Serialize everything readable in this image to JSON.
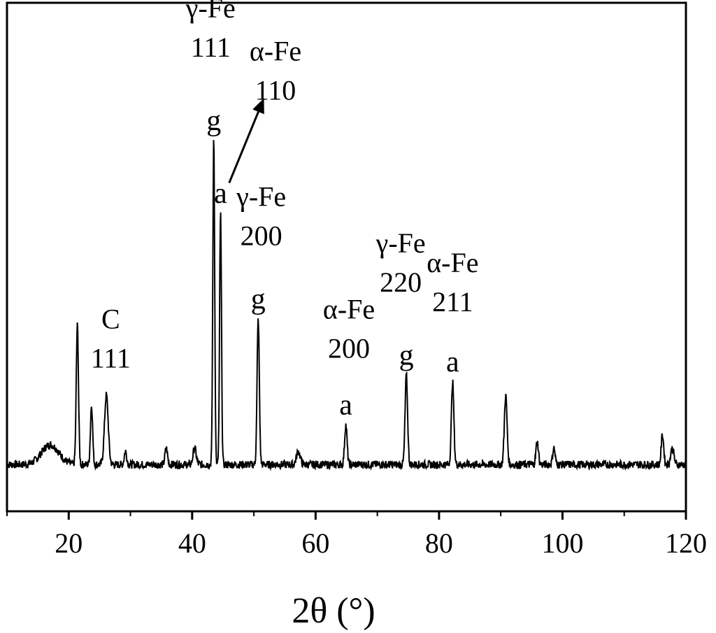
{
  "chart_data": {
    "type": "line",
    "title": "",
    "xlabel": "2θ (°)",
    "ylabel": "",
    "xlim": [
      10,
      120
    ],
    "ylim": [
      0,
      100
    ],
    "grid": false,
    "x_ticks": [
      20,
      40,
      60,
      80,
      100,
      120
    ],
    "x_tick_labels": [
      "20",
      "40",
      "60",
      "80",
      "100",
      "120"
    ],
    "series": [
      {
        "name": "",
        "color": "#000000",
        "baseline": 1.5,
        "noise_amplitude": 1.2,
        "peaks": [
          {
            "x": 17.0,
            "y": 6,
            "w": 1.4
          },
          {
            "x": 21.4,
            "y": 42,
            "w": 0.18
          },
          {
            "x": 23.7,
            "y": 18,
            "w": 0.18
          },
          {
            "x": 26.1,
            "y": 21,
            "w": 0.3
          },
          {
            "x": 29.2,
            "y": 4,
            "w": 0.2
          },
          {
            "x": 35.8,
            "y": 5,
            "w": 0.2
          },
          {
            "x": 40.4,
            "y": 5,
            "w": 0.25
          },
          {
            "x": 43.5,
            "y": 98,
            "w": 0.15
          },
          {
            "x": 44.6,
            "y": 76,
            "w": 0.15
          },
          {
            "x": 50.7,
            "y": 44,
            "w": 0.18
          },
          {
            "x": 57.2,
            "y": 4,
            "w": 0.3
          },
          {
            "x": 64.9,
            "y": 12,
            "w": 0.2
          },
          {
            "x": 74.7,
            "y": 27,
            "w": 0.2
          },
          {
            "x": 82.2,
            "y": 25,
            "w": 0.2
          },
          {
            "x": 90.8,
            "y": 21,
            "w": 0.22
          },
          {
            "x": 95.9,
            "y": 7,
            "w": 0.2
          },
          {
            "x": 98.6,
            "y": 5,
            "w": 0.2
          },
          {
            "x": 116.2,
            "y": 9,
            "w": 0.2
          },
          {
            "x": 117.8,
            "y": 5,
            "w": 0.25
          }
        ]
      }
    ],
    "peak_markers": [
      {
        "x": 43.5,
        "label": "g",
        "y": 103
      },
      {
        "x": 44.6,
        "label": "a",
        "y": 81
      },
      {
        "x": 50.7,
        "label": "g",
        "y": 49
      },
      {
        "x": 64.9,
        "label": "a",
        "y": 17
      },
      {
        "x": 74.7,
        "label": "g",
        "y": 32
      },
      {
        "x": 82.2,
        "label": "a",
        "y": 30
      }
    ],
    "annotations": [
      {
        "lines": [
          "C",
          "111"
        ],
        "x": 26.8,
        "y": 43
      },
      {
        "lines": [
          "γ-Fe",
          "111"
        ],
        "x": 43.0,
        "y": 137
      },
      {
        "lines": [
          "α-Fe",
          "110"
        ],
        "x": 53.5,
        "y": 124
      },
      {
        "lines": [
          "γ-Fe",
          "200"
        ],
        "x": 51.2,
        "y": 80
      },
      {
        "lines": [
          "α-Fe",
          "200"
        ],
        "x": 65.4,
        "y": 46
      },
      {
        "lines": [
          "γ-Fe",
          "220"
        ],
        "x": 73.8,
        "y": 66
      },
      {
        "lines": [
          "α-Fe",
          "211"
        ],
        "x": 82.2,
        "y": 60
      }
    ],
    "arrow": {
      "from": [
        46.0,
        87
      ],
      "to": [
        51.5,
        112
      ]
    }
  }
}
